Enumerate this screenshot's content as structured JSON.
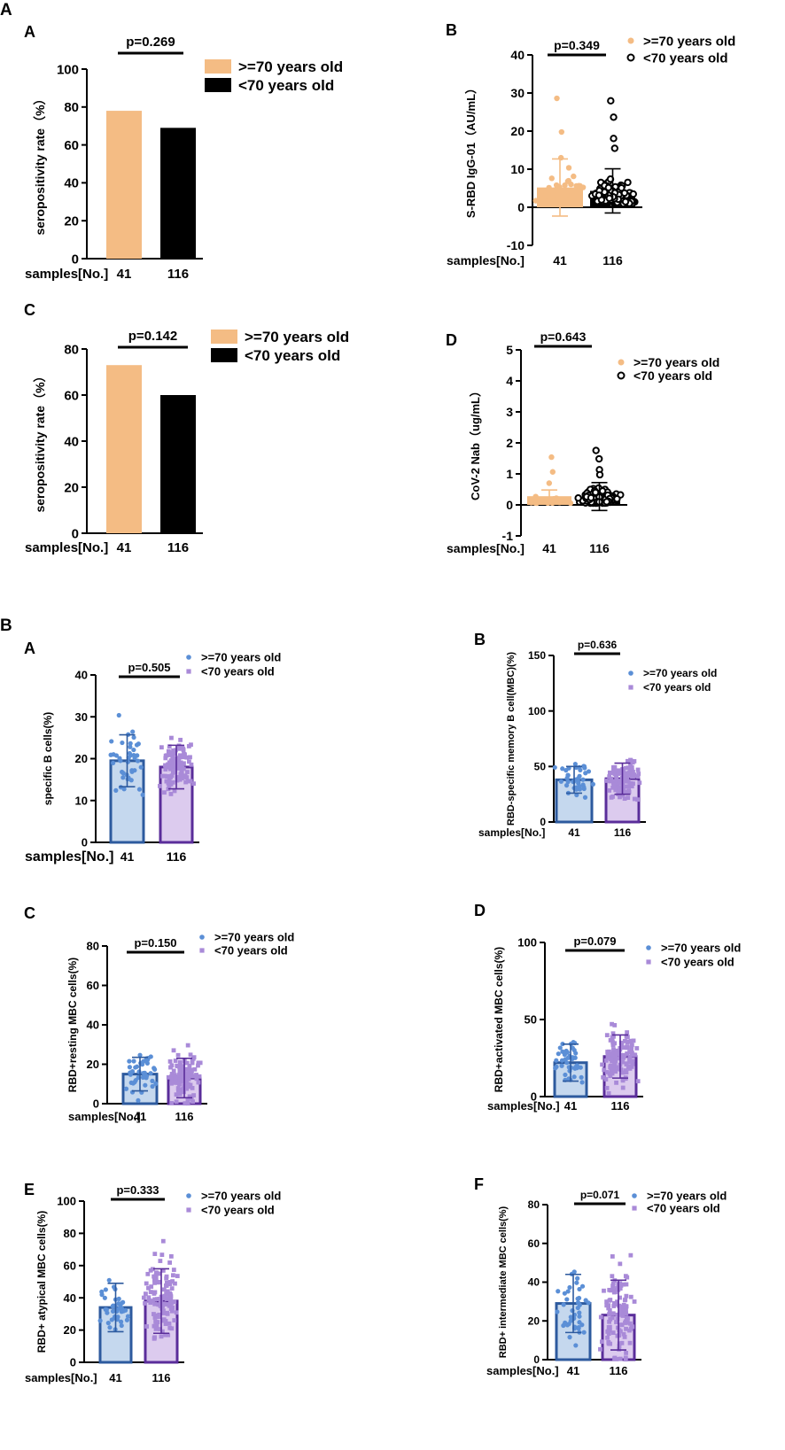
{
  "figure": {
    "panel_A_label": "A",
    "panel_B_label": "B",
    "sample_axis_label": "samples[No.]",
    "group_labels": [
      "41",
      "116"
    ],
    "legend": [
      ">=70 years old",
      "<70 years old"
    ]
  },
  "colors": {
    "orange": "#f4bc84",
    "black": "#000000",
    "blue_fill": "#c5d8ee",
    "blue_edge": "#2d5a9e",
    "blue_dot": "#5b8fd6",
    "purple_fill": "#dccbee",
    "purple_edge": "#5a2d9a",
    "purple_dot": "#a98ad8"
  },
  "chart_data": [
    {
      "panel": "A",
      "subpanel": "A",
      "type": "bar",
      "categories": [
        ">=70 years old",
        "<70 years old"
      ],
      "values": [
        78,
        69
      ],
      "ylabel": "seropositivity rate（%）",
      "ylim": [
        0,
        100
      ],
      "yticks": [
        0,
        20,
        40,
        60,
        80,
        100
      ],
      "pvalue": "p=0.269",
      "samples": [
        "41",
        "116"
      ]
    },
    {
      "panel": "A",
      "subpanel": "B",
      "type": "bar",
      "categories": [
        ">=70 years old",
        "<70 years old"
      ],
      "means": [
        5.2,
        4.3
      ],
      "sd": [
        7.5,
        5.8
      ],
      "ylabel": "S-RBD IgG-01（AU/mL）",
      "ylim": [
        -10,
        40
      ],
      "yticks": [
        -10,
        0,
        10,
        20,
        30,
        40
      ],
      "pvalue": "p=0.349",
      "samples": [
        "41",
        "116"
      ]
    },
    {
      "panel": "A",
      "subpanel": "C",
      "type": "bar",
      "categories": [
        ">=70 years old",
        "<70 years old"
      ],
      "values": [
        73,
        60
      ],
      "ylabel": "seropositivity rate（%）",
      "ylim": [
        0,
        80
      ],
      "yticks": [
        0,
        20,
        40,
        60,
        80
      ],
      "pvalue": "p=0.142",
      "samples": [
        "41",
        "116"
      ]
    },
    {
      "panel": "A",
      "subpanel": "D",
      "type": "bar",
      "categories": [
        ">=70 years old",
        "<70 years old"
      ],
      "means": [
        0.28,
        0.27
      ],
      "sd": [
        0.2,
        0.45
      ],
      "ylabel": "CoV-2 Nab（ug/mL）",
      "ylim": [
        -1,
        5
      ],
      "yticks": [
        -1,
        0,
        1,
        2,
        3,
        4,
        5
      ],
      "pvalue": "p=0.643",
      "samples": [
        "41",
        "116"
      ]
    },
    {
      "panel": "B",
      "subpanel": "A",
      "type": "bar",
      "categories": [
        ">=70 years old",
        "<70 years old"
      ],
      "means": [
        19.5,
        18
      ],
      "sd": [
        6.2,
        5.2
      ],
      "ylabel": "specific B cells(%)",
      "ylim": [
        0,
        40
      ],
      "yticks": [
        0,
        10,
        20,
        30,
        40
      ],
      "pvalue": "p=0.505",
      "samples": [
        "41",
        "116"
      ]
    },
    {
      "panel": "B",
      "subpanel": "B",
      "type": "bar",
      "categories": [
        ">=70 years old",
        "<70 years old"
      ],
      "means": [
        38,
        39
      ],
      "sd": [
        12,
        14
      ],
      "ylabel": "RBD-specific memory B cell(MBC)(%)",
      "ylim": [
        0,
        150
      ],
      "yticks": [
        0,
        50,
        100,
        150
      ],
      "pvalue": "p=0.636",
      "samples": [
        "41",
        "116"
      ]
    },
    {
      "panel": "B",
      "subpanel": "C",
      "type": "bar",
      "categories": [
        ">=70 years old",
        "<70 years old"
      ],
      "means": [
        15,
        13
      ],
      "sd": [
        8.5,
        10
      ],
      "ylabel": "RBD+resting MBC cells(%)",
      "ylim": [
        0,
        80
      ],
      "yticks": [
        0,
        20,
        40,
        60,
        80
      ],
      "pvalue": "p=0.150",
      "samples": [
        "41",
        "116"
      ]
    },
    {
      "panel": "B",
      "subpanel": "D",
      "type": "bar",
      "categories": [
        ">=70 years old",
        "<70 years old"
      ],
      "means": [
        22,
        26
      ],
      "sd": [
        12,
        14
      ],
      "ylabel": "RBD+activated MBC cells(%)",
      "ylim": [
        0,
        100
      ],
      "yticks": [
        0,
        50,
        100
      ],
      "pvalue": "p=0.079",
      "samples": [
        "41",
        "116"
      ]
    },
    {
      "panel": "B",
      "subpanel": "E",
      "type": "bar",
      "categories": [
        ">=70 years old",
        "<70 years old"
      ],
      "means": [
        34,
        38
      ],
      "sd": [
        15,
        20
      ],
      "ylabel": "RBD+ atypical MBC cells(%)",
      "ylim": [
        0,
        100
      ],
      "yticks": [
        0,
        20,
        40,
        60,
        80,
        100
      ],
      "pvalue": "p=0.333",
      "samples": [
        "41",
        "116"
      ]
    },
    {
      "panel": "B",
      "subpanel": "F",
      "type": "bar",
      "categories": [
        ">=70 years old",
        "<70 years old"
      ],
      "means": [
        29,
        23
      ],
      "sd": [
        15,
        18
      ],
      "ylabel": "RBD+ intermediate MBC cells(%)",
      "ylim": [
        0,
        80
      ],
      "yticks": [
        0,
        20,
        40,
        60,
        80
      ],
      "pvalue": "p=0.071",
      "samples": [
        "41",
        "116"
      ]
    }
  ]
}
